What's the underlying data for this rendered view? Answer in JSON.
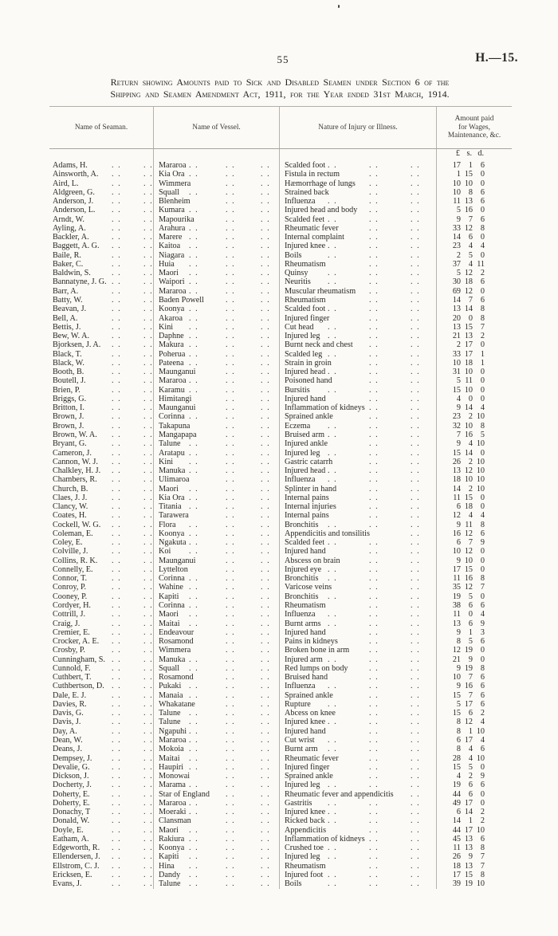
{
  "page": {
    "number": "55",
    "doc_code": "H.—15."
  },
  "title": {
    "line1": "Return showing Amounts paid to Sick and Disabled Seamen under Section 6 of the",
    "line2": "Shipping and Seamen Amendment Act, 1911, for the Year ended 31st March, 1914."
  },
  "table": {
    "headers": {
      "seaman": "Name of Seaman.",
      "vessel": "Name of Vessel.",
      "injury": "Nature of Injury or Illness.",
      "amount_lines": [
        "Amount paid",
        "for Wages,",
        "Maintenance, &c."
      ]
    },
    "currency": {
      "pounds": "£",
      "shillings": "s.",
      "pence": "d."
    },
    "rows": [
      [
        "Adams, H.",
        "Mararoa",
        "Scalded foot",
        "17",
        "1",
        "6"
      ],
      [
        "Ainsworth, A.",
        "Kia Ora",
        "Fistula in rectum",
        "1",
        "15",
        "0"
      ],
      [
        "Aird, L.",
        "Wimmera",
        "Hæmorrhage of lungs",
        "10",
        "10",
        "0"
      ],
      [
        "Aldgreen, G.",
        "Squall",
        "Strained back",
        "10",
        "8",
        "6"
      ],
      [
        "Anderson, J.",
        "Blenheim",
        "Influenza",
        "11",
        "13",
        "6"
      ],
      [
        "Anderson, L.",
        "Kumara",
        "Injured head and body",
        "5",
        "16",
        "0"
      ],
      [
        "Arndt, W.",
        "Mapourika",
        "Scalded feet",
        "9",
        "7",
        "6"
      ],
      [
        "Ayling, A.",
        "Arahura",
        "Rheumatic fever",
        "33",
        "12",
        "8"
      ],
      [
        "Backler, A.",
        "Marere",
        "Internal complaint",
        "14",
        "6",
        "0"
      ],
      [
        "Baggett, A. G.",
        "Kaitoa",
        "Injured knee",
        "23",
        "4",
        "4"
      ],
      [
        "Baile, R.",
        "Niagara",
        "Boils",
        "2",
        "5",
        "0"
      ],
      [
        "Baker, C.",
        "Huia",
        "Rheumatism",
        "37",
        "4",
        "11"
      ],
      [
        "Baldwin, S.",
        "Maori",
        "Quinsy",
        "5",
        "12",
        "2"
      ],
      [
        "Bannatyne, J. G.",
        "Waipori",
        "Neuritis",
        "30",
        "18",
        "6"
      ],
      [
        "Barr, A.",
        "Mararoa",
        "Muscular rheumatism",
        "69",
        "12",
        "0"
      ],
      [
        "Batty, W.",
        "Baden Powell",
        "Rheumatism",
        "14",
        "7",
        "6"
      ],
      [
        "Beavan, J.",
        "Koonya",
        "Scalded foot",
        "13",
        "14",
        "8"
      ],
      [
        "Bell, A.",
        "Akaroa",
        "Injured finger",
        "20",
        "0",
        "8"
      ],
      [
        "Bettis, J.",
        "Kini",
        "Cut head",
        "13",
        "15",
        "7"
      ],
      [
        "Bew, W. A.",
        "Daphne",
        "Injured leg",
        "21",
        "13",
        "2"
      ],
      [
        "Bjorksen, J. A.",
        "Makura",
        "Burnt neck and chest",
        "2",
        "17",
        "0"
      ],
      [
        "Black, T.",
        "Poherua",
        "Scalded leg",
        "33",
        "17",
        "1"
      ],
      [
        "Black, W.",
        "Pateena",
        "Strain in groin",
        "10",
        "18",
        "1"
      ],
      [
        "Booth, B.",
        "Maunganui",
        "Injured head",
        "31",
        "10",
        "0"
      ],
      [
        "Boutell, J.",
        "Mararoa",
        "Poisoned hand",
        "5",
        "11",
        "0"
      ],
      [
        "Brien, P.",
        "Karamu",
        "Bursitis",
        "15",
        "10",
        "0"
      ],
      [
        "Briggs, G.",
        "Himitangi",
        "Injured hand",
        "4",
        "0",
        "0"
      ],
      [
        "Britton, I.",
        "Maunganui",
        "Inflammation of kidneys",
        "9",
        "14",
        "4"
      ],
      [
        "Brown, J.",
        "Corinna",
        "Sprained ankle",
        "23",
        "2",
        "10"
      ],
      [
        "Brown, J.",
        "Takapuna",
        "Eczema",
        "32",
        "10",
        "8"
      ],
      [
        "Brown, W. A.",
        "Mangapapa",
        "Bruised arm",
        "7",
        "16",
        "5"
      ],
      [
        "Bryant, G.",
        "Talune",
        "Injured ankle",
        "9",
        "4",
        "10"
      ],
      [
        "Cameron, J.",
        "Aratapu",
        "Injured leg",
        "15",
        "14",
        "0"
      ],
      [
        "Cannon, W. J.",
        "Kini",
        "Gastric catarrh",
        "26",
        "2",
        "10"
      ],
      [
        "Chalkley, H. J.",
        "Manuka",
        "Injured head",
        "13",
        "12",
        "10"
      ],
      [
        "Chambers, R.",
        "Ulimaroa",
        "Influenza",
        "18",
        "10",
        "10"
      ],
      [
        "Church, B.",
        "Maori",
        "Splinter in hand",
        "14",
        "2",
        "10"
      ],
      [
        "Claes, J. J.",
        "Kia Ora",
        "Internal pains",
        "11",
        "15",
        "0"
      ],
      [
        "Clancy, W.",
        "Titania",
        "Internal injuries",
        "6",
        "18",
        "0"
      ],
      [
        "Coates, H.",
        "Tarawera",
        "Internal pains",
        "12",
        "4",
        "4"
      ],
      [
        "Cockell, W. G.",
        "Flora",
        "Bronchitis",
        "9",
        "11",
        "8"
      ],
      [
        "Coleman, E.",
        "Koonya",
        "Appendicitis and tonsilitis",
        "16",
        "12",
        "6"
      ],
      [
        "Coley, E.",
        "Ngakuta",
        "Scalded feet",
        "6",
        "7",
        "9"
      ],
      [
        "Colville, J.",
        "Koi",
        "Injured hand",
        "10",
        "12",
        "0"
      ],
      [
        "Collins, R. K.",
        "Maunganui",
        "Abscess on brain",
        "9",
        "10",
        "0"
      ],
      [
        "Connelly, E.",
        "Lyttelton",
        "Injured eye",
        "17",
        "15",
        "0"
      ],
      [
        "Connor, T.",
        "Corinna",
        "Bronchitis",
        "11",
        "16",
        "8"
      ],
      [
        "Conroy, P.",
        "Wahine",
        "Varicose veins",
        "35",
        "12",
        "7"
      ],
      [
        "Cooney, P.",
        "Kapiti",
        "Bronchitis",
        "19",
        "5",
        "0"
      ],
      [
        "Cordyer, H.",
        "Corinna",
        "Rheumatism",
        "38",
        "6",
        "6"
      ],
      [
        "Cottrill, J.",
        "Maori",
        "Influenza",
        "11",
        "0",
        "4"
      ],
      [
        "Craig, J.",
        "Maitai",
        "Burnt arms",
        "13",
        "6",
        "9"
      ],
      [
        "Cremier, E.",
        "Endeavour",
        "Injured hand",
        "9",
        "1",
        "3"
      ],
      [
        "Crocker, A. E.",
        "Rosamond",
        "Pains in kidneys",
        "8",
        "5",
        "6"
      ],
      [
        "Crosby, P.",
        "Wimmera",
        "Broken bone in arm",
        "12",
        "19",
        "0"
      ],
      [
        "Cunningham, S.",
        "Manuka",
        "Injured arm",
        "21",
        "9",
        "0"
      ],
      [
        "Cunnold, F.",
        "Squall",
        "Red lumps on body",
        "9",
        "19",
        "8"
      ],
      [
        "Cuthbert, T.",
        "Rosamond",
        "Bruised hand",
        "10",
        "7",
        "6"
      ],
      [
        "Cuthbertson, D.",
        "Pukaki",
        "Influenza",
        "9",
        "16",
        "6"
      ],
      [
        "Dale, E. J.",
        "Manaia",
        "Sprained ankle",
        "15",
        "7",
        "6"
      ],
      [
        "Davies, R.",
        "Whakatane",
        "Rupture",
        "5",
        "17",
        "6"
      ],
      [
        "Davis, G.",
        "Talune",
        "Abcess on knee",
        "15",
        "6",
        "2"
      ],
      [
        "Davis, J.",
        "Talune",
        "Injured knee",
        "8",
        "12",
        "4"
      ],
      [
        "Day, A.",
        "Ngapuhi",
        "Injured hand",
        "8",
        "1",
        "10"
      ],
      [
        "Dean, W.",
        "Mararoa",
        "Cut wrist",
        "6",
        "17",
        "4"
      ],
      [
        "Deans, J.",
        "Mokoia",
        "Burnt arm",
        "8",
        "4",
        "6"
      ],
      [
        "Dempsey, J.",
        "Maitai",
        "Rheumatic fever",
        "28",
        "4",
        "10"
      ],
      [
        "Devalie, G.",
        "Haupiri",
        "Injured finger",
        "15",
        "5",
        "0"
      ],
      [
        "Dickson, J.",
        "Monowai",
        "Sprained ankle",
        "4",
        "2",
        "9"
      ],
      [
        "Docherty, J.",
        "Marama",
        "Injured leg",
        "19",
        "6",
        "6"
      ],
      [
        "Doherty, E.",
        "Star of England",
        "Rheumatic fever and appendicitis",
        "44",
        "6",
        "0"
      ],
      [
        "Doherty, E.",
        "Mararoa",
        "Gastritis",
        "49",
        "17",
        "0"
      ],
      [
        "Donachy, T",
        "Moeraki",
        "Injured knee",
        "6",
        "14",
        "2"
      ],
      [
        "Donald, W.",
        "Clansman",
        "Ricked back",
        "14",
        "1",
        "2"
      ],
      [
        "Doyle, E.",
        "Maori",
        "Appendicitis",
        "44",
        "17",
        "10"
      ],
      [
        "Eatham, A.",
        "Rakiura",
        "Inflammation of kidneys",
        "45",
        "13",
        "6"
      ],
      [
        "Edgeworth, R.",
        "Koonya",
        "Crushed toe",
        "11",
        "13",
        "8"
      ],
      [
        "Ellendersen, J.",
        "Kapiti",
        "Injured leg",
        "26",
        "9",
        "7"
      ],
      [
        "Ellstrom, C. J.",
        "Hina",
        "Rheumatism",
        "18",
        "13",
        "7"
      ],
      [
        "Ericksen, E.",
        "Dandy",
        "Injured foot",
        "17",
        "15",
        "8"
      ],
      [
        "Evans, J.",
        "Talune",
        "Boils",
        "39",
        "19",
        "10"
      ]
    ]
  }
}
